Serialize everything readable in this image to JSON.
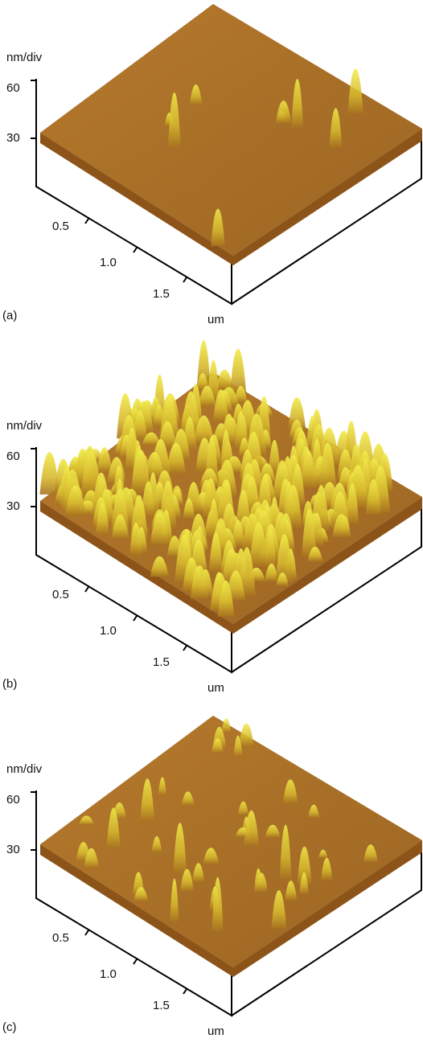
{
  "panels": [
    {
      "label": "(a)",
      "z_unit": "nm/div",
      "z_ticks": [
        "60",
        "30"
      ],
      "x_ticks": [
        "0.5",
        "1.0",
        "1.5"
      ],
      "x_unit": "um"
    },
    {
      "label": "(b)",
      "z_unit": "nm/div",
      "z_ticks": [
        "60",
        "30"
      ],
      "x_ticks": [
        "0.5",
        "1.0",
        "1.5"
      ],
      "x_unit": "um"
    },
    {
      "label": "(c)",
      "z_unit": "nm/div",
      "z_ticks": [
        "60",
        "30"
      ],
      "x_ticks": [
        "0.5",
        "1.0",
        "1.5"
      ],
      "x_unit": "um"
    }
  ]
}
